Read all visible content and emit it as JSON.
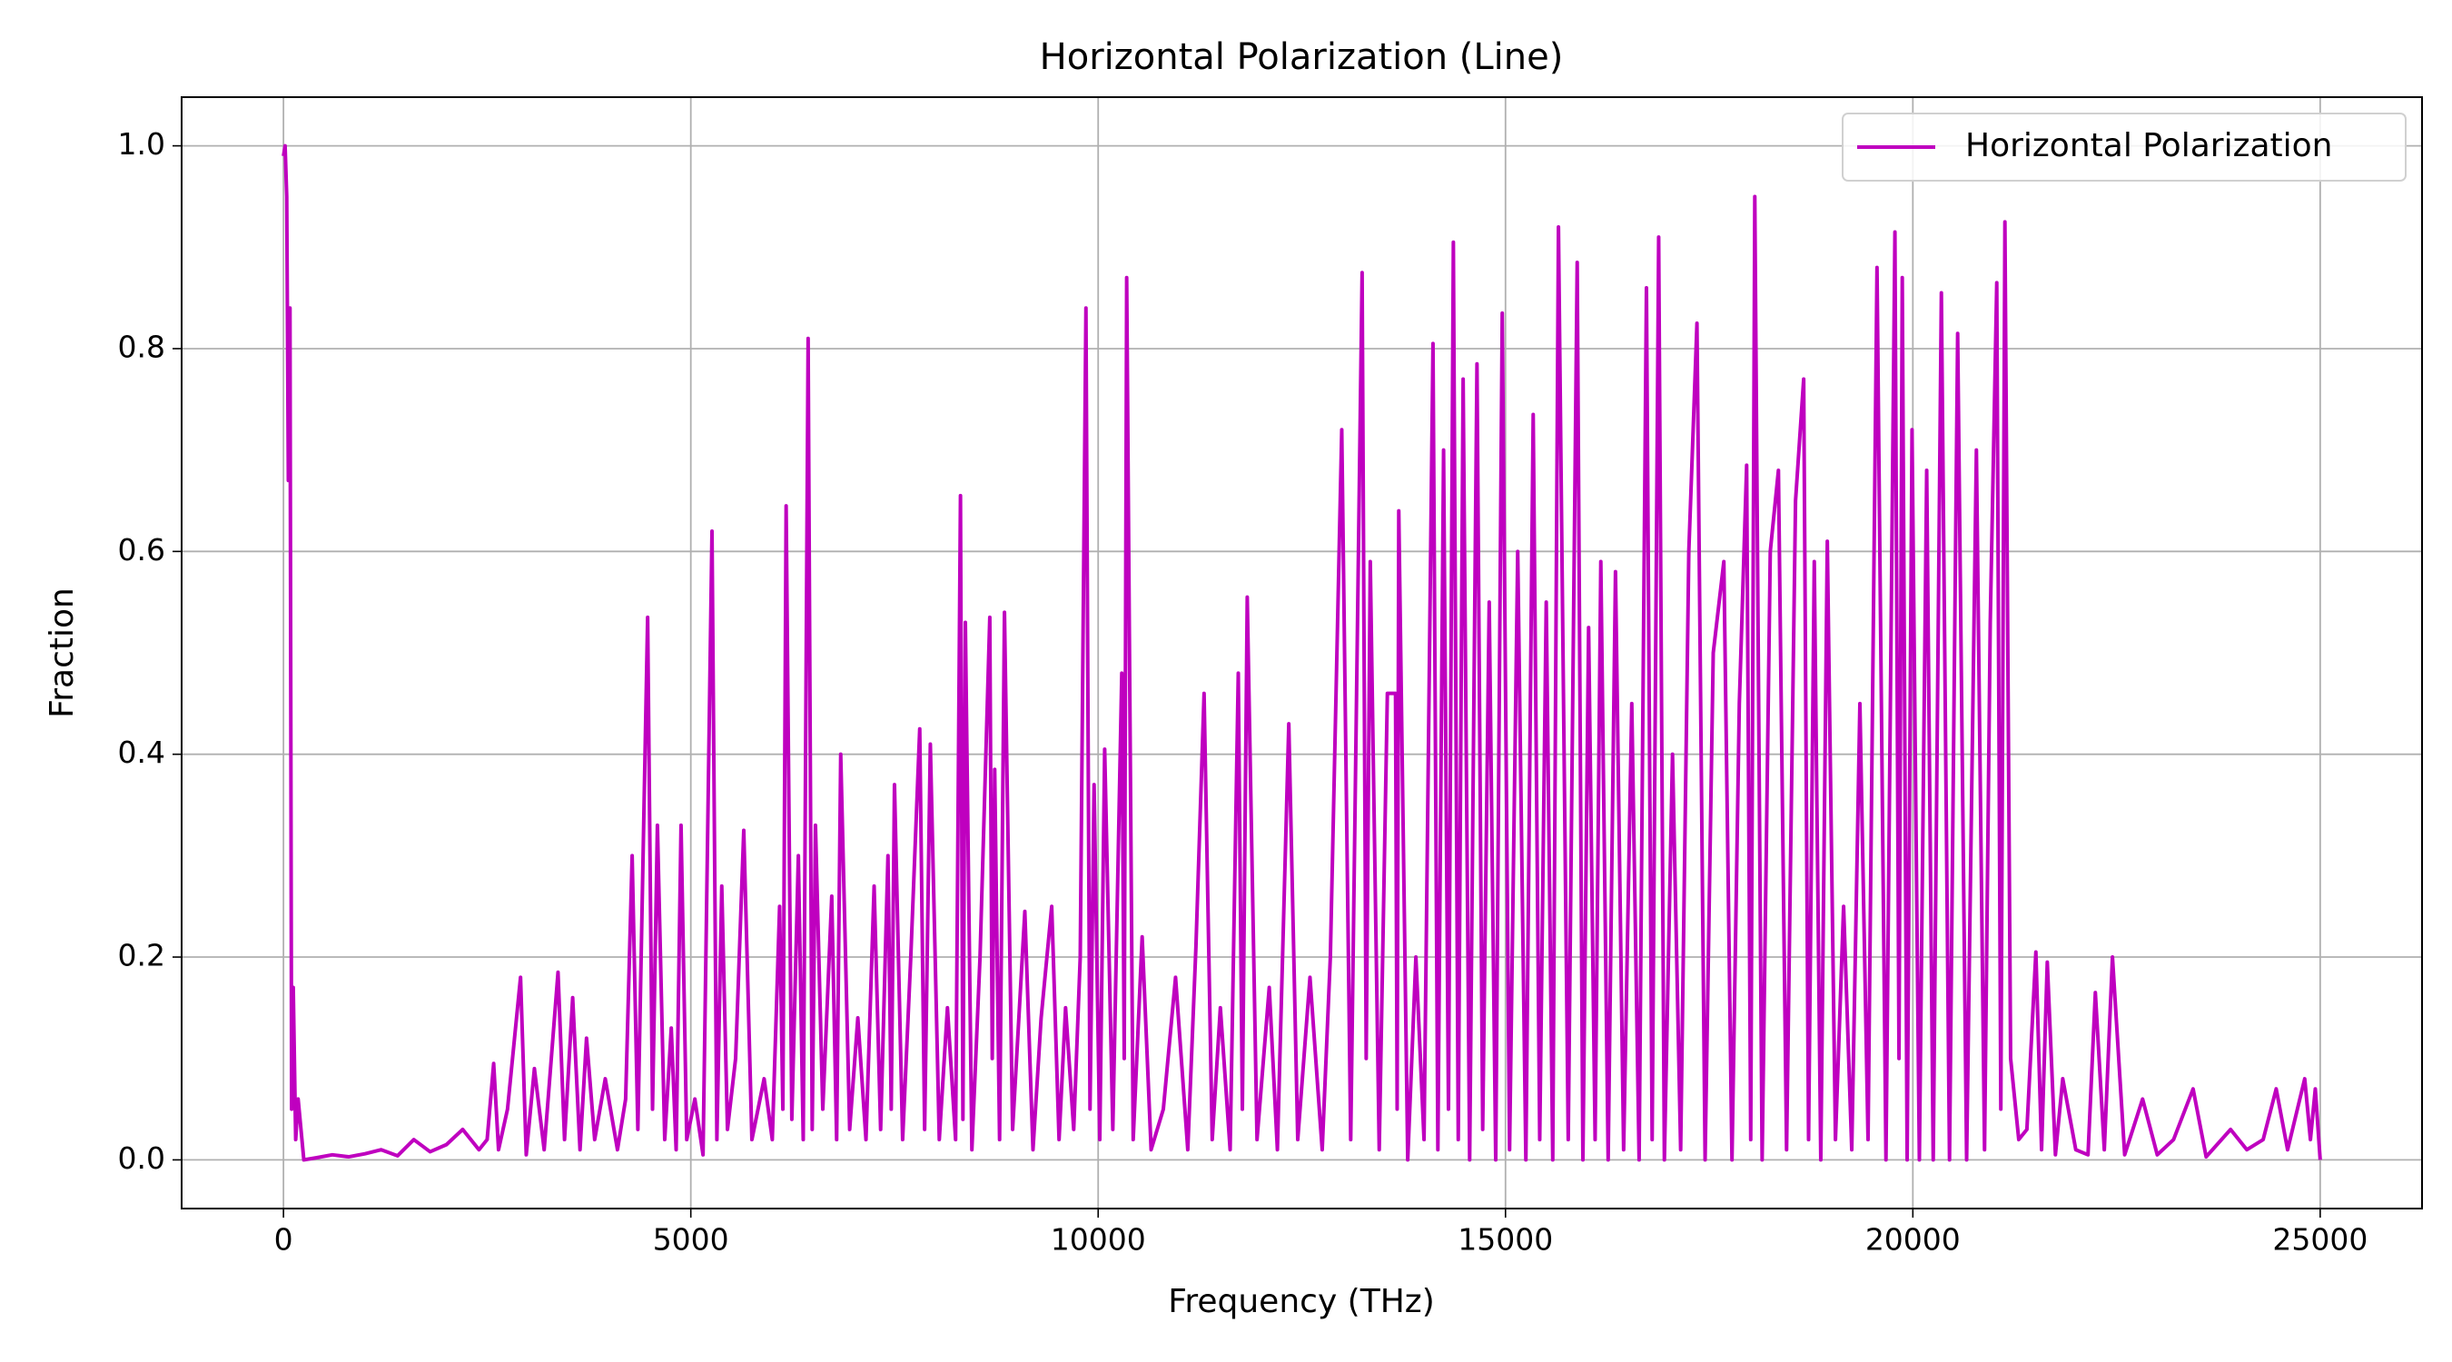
{
  "chart_data": {
    "type": "line",
    "title": "Horizontal Polarization (Line)",
    "x_label": "Frequency (THz)",
    "y_label": "Fraction",
    "x": [
      0,
      20,
      40,
      60,
      80,
      100,
      120,
      150,
      180,
      250,
      400,
      600,
      800,
      1000,
      1200,
      1400,
      1600,
      1800,
      2000,
      2200,
      2400,
      2500,
      2580,
      2640,
      2750,
      2910,
      2980,
      3080,
      3200,
      3370,
      3450,
      3550,
      3640,
      3720,
      3820,
      3950,
      4100,
      4200,
      4280,
      4350,
      4470,
      4530,
      4590,
      4680,
      4760,
      4820,
      4880,
      4950,
      5050,
      5150,
      5260,
      5320,
      5380,
      5450,
      5550,
      5650,
      5750,
      5900,
      6000,
      6090,
      6130,
      6170,
      6240,
      6320,
      6380,
      6440,
      6490,
      6530,
      6620,
      6730,
      6790,
      6840,
      6950,
      7050,
      7150,
      7250,
      7330,
      7420,
      7460,
      7500,
      7600,
      7700,
      7810,
      7870,
      7940,
      8050,
      8150,
      8250,
      8310,
      8340,
      8370,
      8450,
      8550,
      8670,
      8700,
      8730,
      8790,
      8850,
      8950,
      9100,
      9200,
      9300,
      9430,
      9520,
      9600,
      9700,
      9780,
      9850,
      9900,
      9950,
      10020,
      10080,
      10180,
      10290,
      10320,
      10350,
      10430,
      10540,
      10650,
      10800,
      10950,
      11100,
      11200,
      11300,
      11400,
      11500,
      11620,
      11720,
      11770,
      11830,
      11950,
      12100,
      12200,
      12340,
      12450,
      12600,
      12750,
      12850,
      12990,
      13100,
      13240,
      13290,
      13340,
      13450,
      13550,
      13650,
      13670,
      13690,
      13800,
      13900,
      14000,
      14110,
      14170,
      14240,
      14300,
      14360,
      14420,
      14480,
      14560,
      14650,
      14720,
      14800,
      14880,
      14960,
      15050,
      15150,
      15250,
      15340,
      15420,
      15500,
      15580,
      15650,
      15770,
      15880,
      15950,
      16020,
      16100,
      16170,
      16260,
      16350,
      16450,
      16550,
      16640,
      16730,
      16800,
      16880,
      16950,
      17050,
      17150,
      17250,
      17350,
      17450,
      17550,
      17680,
      17780,
      17870,
      17960,
      18010,
      18060,
      18150,
      18250,
      18350,
      18450,
      18560,
      18660,
      18720,
      18790,
      18870,
      18950,
      19050,
      19150,
      19250,
      19350,
      19450,
      19560,
      19670,
      19780,
      19830,
      19870,
      19930,
      19990,
      20080,
      20170,
      20250,
      20350,
      20450,
      20550,
      20660,
      20780,
      20880,
      20950,
      21030,
      21080,
      21130,
      21200,
      21300,
      21400,
      21510,
      21580,
      21650,
      21750,
      21840,
      22000,
      22150,
      22240,
      22350,
      22450,
      22600,
      22820,
      23000,
      23200,
      23440,
      23600,
      23900,
      24100,
      24300,
      24460,
      24600,
      24810,
      24880,
      24940,
      25000
    ],
    "series": [
      {
        "name": "Horizontal Polarization",
        "color": "#bf00bf",
        "values": [
          0.99,
          1.0,
          0.95,
          0.67,
          0.84,
          0.05,
          0.17,
          0.02,
          0.06,
          0.0,
          0.002,
          0.005,
          0.003,
          0.006,
          0.01,
          0.004,
          0.02,
          0.008,
          0.015,
          0.03,
          0.01,
          0.02,
          0.095,
          0.01,
          0.05,
          0.18,
          0.005,
          0.09,
          0.01,
          0.185,
          0.02,
          0.16,
          0.01,
          0.12,
          0.02,
          0.08,
          0.01,
          0.06,
          0.3,
          0.03,
          0.535,
          0.05,
          0.33,
          0.02,
          0.13,
          0.01,
          0.33,
          0.02,
          0.06,
          0.005,
          0.62,
          0.02,
          0.27,
          0.03,
          0.1,
          0.325,
          0.02,
          0.08,
          0.02,
          0.25,
          0.05,
          0.645,
          0.04,
          0.3,
          0.02,
          0.81,
          0.03,
          0.33,
          0.05,
          0.26,
          0.02,
          0.4,
          0.03,
          0.14,
          0.02,
          0.27,
          0.03,
          0.3,
          0.05,
          0.37,
          0.02,
          0.2,
          0.425,
          0.03,
          0.41,
          0.02,
          0.15,
          0.02,
          0.655,
          0.04,
          0.53,
          0.01,
          0.2,
          0.535,
          0.1,
          0.385,
          0.02,
          0.54,
          0.03,
          0.245,
          0.01,
          0.14,
          0.25,
          0.02,
          0.15,
          0.03,
          0.2,
          0.84,
          0.05,
          0.37,
          0.02,
          0.405,
          0.03,
          0.48,
          0.1,
          0.87,
          0.02,
          0.22,
          0.01,
          0.05,
          0.18,
          0.01,
          0.21,
          0.46,
          0.02,
          0.15,
          0.01,
          0.48,
          0.05,
          0.555,
          0.02,
          0.17,
          0.01,
          0.43,
          0.02,
          0.18,
          0.01,
          0.2,
          0.72,
          0.02,
          0.875,
          0.1,
          0.59,
          0.01,
          0.46,
          0.46,
          0.05,
          0.64,
          0.0,
          0.2,
          0.02,
          0.805,
          0.01,
          0.7,
          0.05,
          0.905,
          0.02,
          0.77,
          0.0,
          0.785,
          0.03,
          0.55,
          0.0,
          0.835,
          0.01,
          0.6,
          0.0,
          0.735,
          0.02,
          0.55,
          0.0,
          0.92,
          0.02,
          0.885,
          0.0,
          0.525,
          0.02,
          0.59,
          0.0,
          0.58,
          0.01,
          0.45,
          0.0,
          0.86,
          0.02,
          0.91,
          0.0,
          0.4,
          0.01,
          0.6,
          0.825,
          0.0,
          0.5,
          0.59,
          0.0,
          0.45,
          0.685,
          0.02,
          0.95,
          0.0,
          0.6,
          0.68,
          0.01,
          0.65,
          0.77,
          0.02,
          0.59,
          0.0,
          0.61,
          0.02,
          0.25,
          0.01,
          0.45,
          0.02,
          0.88,
          0.0,
          0.915,
          0.1,
          0.87,
          0.0,
          0.72,
          0.0,
          0.68,
          0.0,
          0.855,
          0.0,
          0.815,
          0.0,
          0.7,
          0.01,
          0.53,
          0.865,
          0.05,
          0.925,
          0.1,
          0.02,
          0.03,
          0.205,
          0.01,
          0.195,
          0.005,
          0.08,
          0.01,
          0.005,
          0.165,
          0.01,
          0.2,
          0.005,
          0.06,
          0.005,
          0.02,
          0.07,
          0.003,
          0.03,
          0.01,
          0.02,
          0.07,
          0.01,
          0.08,
          0.02,
          0.07,
          0.0
        ]
      }
    ],
    "xlim": [
      -1250,
      26250
    ],
    "ylim": [
      -0.048,
      1.048
    ],
    "xticks": [
      0,
      5000,
      10000,
      15000,
      20000,
      25000
    ],
    "yticks": [
      {
        "value": 0,
        "label": "0.0"
      },
      {
        "value": 0.2,
        "label": "0.2"
      },
      {
        "value": 0.4,
        "label": "0.4"
      },
      {
        "value": 0.6,
        "label": "0.6"
      },
      {
        "value": 0.8,
        "label": "0.8"
      },
      {
        "value": 1,
        "label": "1.0"
      }
    ],
    "grid": true,
    "legend": "upper right"
  }
}
